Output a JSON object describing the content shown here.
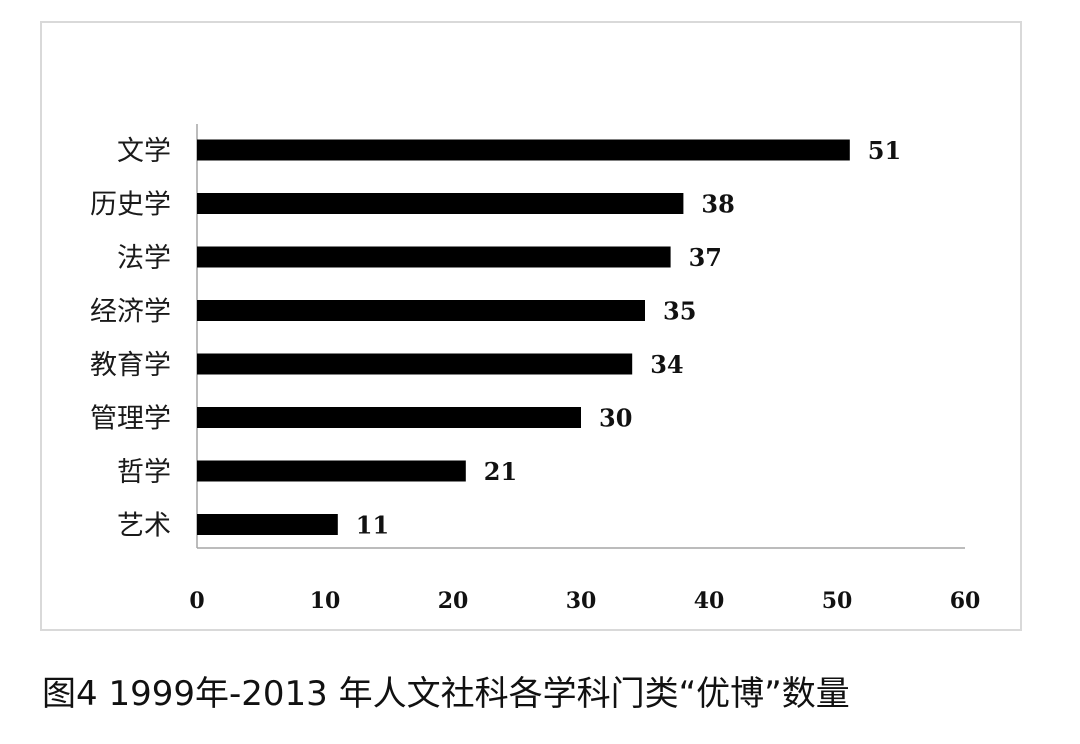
{
  "caption": "图4 1999年-2013 年人文社科各学科门类“优博”数量",
  "chart_data": {
    "type": "bar",
    "orientation": "horizontal",
    "categories": [
      "文学",
      "历史学",
      "法学",
      "经济学",
      "教育学",
      "管理学",
      "哲学",
      "艺术"
    ],
    "values": [
      51,
      38,
      37,
      35,
      34,
      30,
      21,
      11
    ],
    "xlim": [
      0,
      60
    ],
    "xticks": [
      0,
      10,
      20,
      30,
      40,
      50,
      60
    ],
    "data_labels": true,
    "grid": false,
    "legend": "none",
    "bar_color": "#000000"
  }
}
